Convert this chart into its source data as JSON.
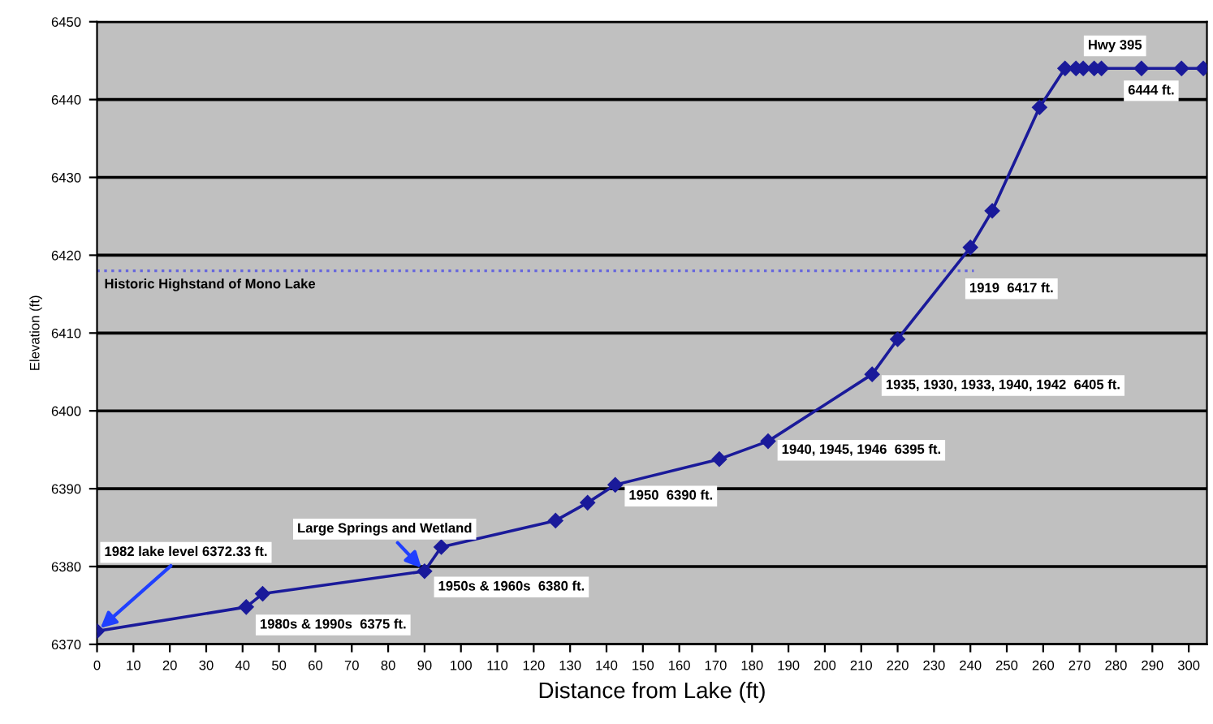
{
  "chart_data": {
    "type": "line",
    "xlabel": "Distance from Lake (ft)",
    "ylabel": "Elevation (ft)",
    "series": [
      {
        "color": "#1a1a9a",
        "marker": "diamond",
        "x": [
          0,
          41,
          45.5,
          90,
          94.6,
          126,
          134.8,
          142.4,
          171,
          184.4,
          213,
          220,
          240,
          246,
          259,
          266,
          269,
          271,
          274,
          276,
          287,
          298,
          304
        ],
        "values": [
          6371.7,
          6374.8,
          6376.5,
          6379.4,
          6382.5,
          6385.9,
          6388.2,
          6390.5,
          6393.8,
          6396.1,
          6404.7,
          6409.2,
          6421,
          6425.7,
          6439,
          6444,
          6444,
          6444,
          6444,
          6444,
          6444,
          6444,
          6444
        ]
      }
    ],
    "xlim": [
      0,
      305
    ],
    "xticks": [
      0,
      10,
      20,
      30,
      40,
      50,
      60,
      70,
      80,
      90,
      100,
      110,
      120,
      130,
      140,
      150,
      160,
      170,
      180,
      190,
      200,
      210,
      220,
      230,
      240,
      250,
      260,
      270,
      280,
      290,
      300
    ],
    "ylim": [
      6370,
      6450
    ],
    "yticks": [
      6370,
      6380,
      6390,
      6400,
      6410,
      6420,
      6430,
      6440,
      6450
    ],
    "grid": "y",
    "ref_lines": [
      {
        "axis": "y",
        "value": 6418,
        "label": "Historic Highstand of Mono Lake",
        "color": "#6666dd",
        "line_style": "dotted"
      }
    ],
    "annotations": [
      {
        "text": "1982 lake level 6372.33 ft.",
        "x": 0,
        "y": 6371.7
      },
      {
        "text": "Large Springs and Wetland",
        "x": 90,
        "y": 6379.4
      },
      {
        "text": "1980s & 1990s  6375 ft.",
        "x": 41,
        "y": 6374.8
      },
      {
        "text": "1950s & 1960s  6380 ft.",
        "x": 90,
        "y": 6379.4
      },
      {
        "text": "1950  6390 ft.",
        "x": 142.4,
        "y": 6390.5
      },
      {
        "text": "1940, 1945, 1946  6395 ft.",
        "x": 184.4,
        "y": 6396.1
      },
      {
        "text": "1935, 1930, 1933, 1940, 1942  6405 ft.",
        "x": 213,
        "y": 6404.7
      },
      {
        "text": "1919  6417 ft.",
        "x": 236,
        "y": 6418
      },
      {
        "text": "Hwy 395",
        "x": 276,
        "y": 6444
      },
      {
        "text": "6444 ft.",
        "x": 287,
        "y": 6444
      }
    ]
  }
}
